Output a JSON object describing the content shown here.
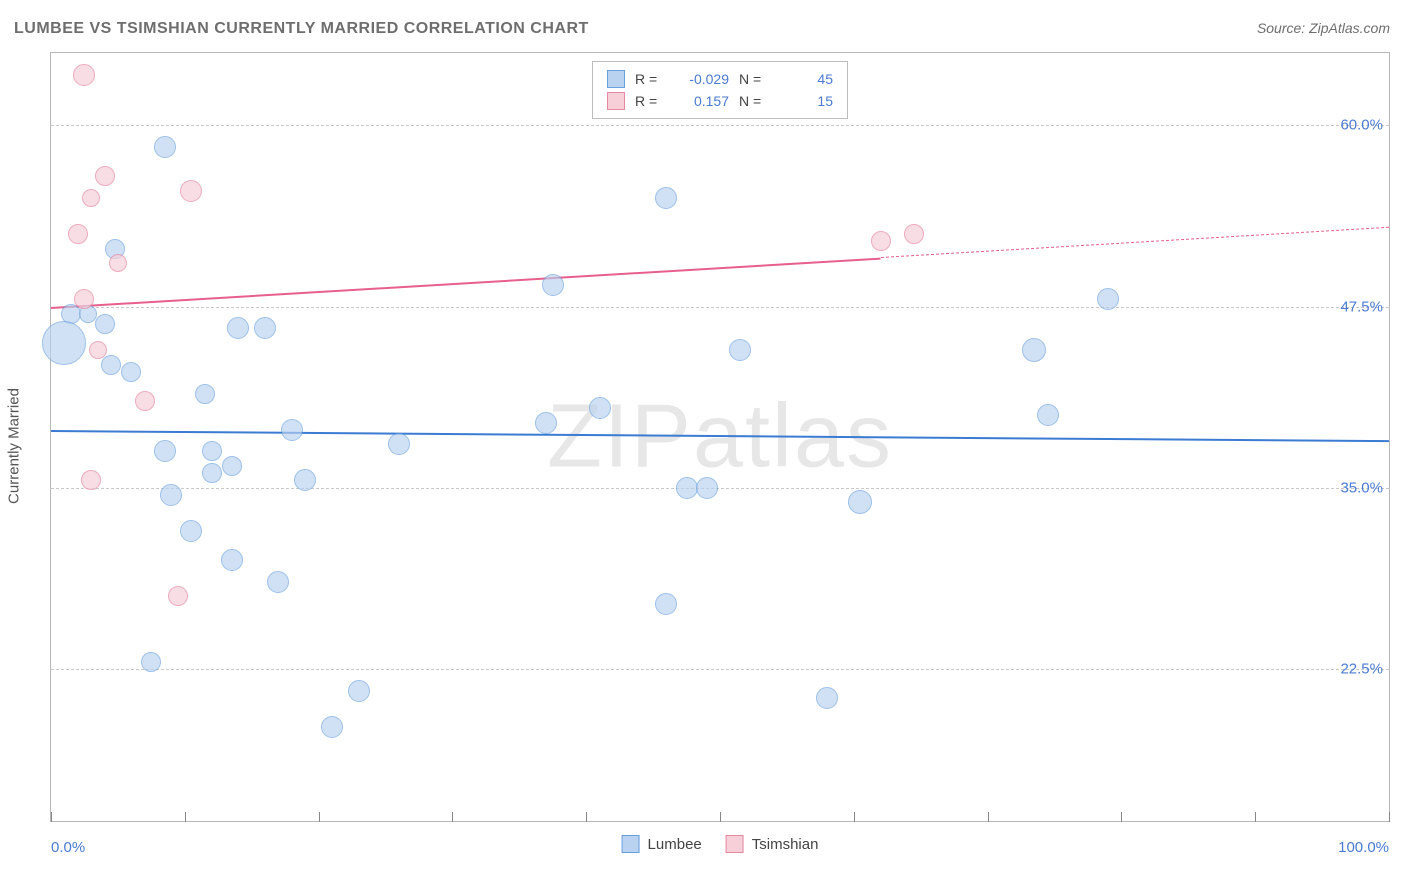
{
  "title": "LUMBEE VS TSIMSHIAN CURRENTLY MARRIED CORRELATION CHART",
  "source_label": "Source: ",
  "source_value": "ZipAtlas.com",
  "watermark": "ZIPatlas",
  "y_axis_label": "Currently Married",
  "chart": {
    "type": "scatter",
    "background_color": "#ffffff",
    "grid_color": "#c9c9c9",
    "axis_color": "#b8b8b8",
    "tick_color": "#888888",
    "label_color": "#4b7bd1",
    "x_range": [
      0,
      100
    ],
    "y_range": [
      12,
      65
    ],
    "x_ticks": [
      0,
      10,
      20,
      30,
      40,
      50,
      60,
      70,
      80,
      90,
      100
    ],
    "x_tick_labels": {
      "0": "0.0%",
      "100": "100.0%"
    },
    "y_gridlines": [
      22.5,
      35.0,
      47.5,
      60.0
    ],
    "y_tick_labels": [
      "22.5%",
      "35.0%",
      "47.5%",
      "60.0%"
    ],
    "series": [
      {
        "name": "Lumbee",
        "fill": "#b9d2f0",
        "stroke": "#6a9fdd",
        "fill_opacity": 0.65,
        "trend": {
          "y_at_x0": 39.0,
          "y_at_x100": 38.3,
          "color": "#3b7bd1",
          "width": 2.2,
          "dashed": false,
          "x_end": 100
        },
        "R": "-0.029",
        "N": "45",
        "points": [
          {
            "x": 8.5,
            "y": 58.5,
            "r": 11
          },
          {
            "x": 46.0,
            "y": 55.0,
            "r": 11
          },
          {
            "x": 4.8,
            "y": 51.5,
            "r": 10
          },
          {
            "x": 37.5,
            "y": 49.0,
            "r": 11
          },
          {
            "x": 79.0,
            "y": 48.0,
            "r": 11
          },
          {
            "x": 1.5,
            "y": 47.0,
            "r": 10
          },
          {
            "x": 2.8,
            "y": 47.0,
            "r": 9
          },
          {
            "x": 4.0,
            "y": 46.3,
            "r": 10
          },
          {
            "x": 14.0,
            "y": 46.0,
            "r": 11
          },
          {
            "x": 16.0,
            "y": 46.0,
            "r": 11
          },
          {
            "x": 1.0,
            "y": 45.0,
            "r": 22
          },
          {
            "x": 73.5,
            "y": 44.5,
            "r": 12
          },
          {
            "x": 51.5,
            "y": 44.5,
            "r": 11
          },
          {
            "x": 4.5,
            "y": 43.5,
            "r": 10
          },
          {
            "x": 6.0,
            "y": 43.0,
            "r": 10
          },
          {
            "x": 11.5,
            "y": 41.5,
            "r": 10
          },
          {
            "x": 41.0,
            "y": 40.5,
            "r": 11
          },
          {
            "x": 74.5,
            "y": 40.0,
            "r": 11
          },
          {
            "x": 37.0,
            "y": 39.5,
            "r": 11
          },
          {
            "x": 18.0,
            "y": 39.0,
            "r": 11
          },
          {
            "x": 26.0,
            "y": 38.0,
            "r": 11
          },
          {
            "x": 8.5,
            "y": 37.5,
            "r": 11
          },
          {
            "x": 12.0,
            "y": 37.5,
            "r": 10
          },
          {
            "x": 13.5,
            "y": 36.5,
            "r": 10
          },
          {
            "x": 12.0,
            "y": 36.0,
            "r": 10
          },
          {
            "x": 19.0,
            "y": 35.5,
            "r": 11
          },
          {
            "x": 47.5,
            "y": 35.0,
            "r": 11
          },
          {
            "x": 49.0,
            "y": 35.0,
            "r": 11
          },
          {
            "x": 9.0,
            "y": 34.5,
            "r": 11
          },
          {
            "x": 60.5,
            "y": 34.0,
            "r": 12
          },
          {
            "x": 10.5,
            "y": 32.0,
            "r": 11
          },
          {
            "x": 13.5,
            "y": 30.0,
            "r": 11
          },
          {
            "x": 17.0,
            "y": 28.5,
            "r": 11
          },
          {
            "x": 46.0,
            "y": 27.0,
            "r": 11
          },
          {
            "x": 7.5,
            "y": 23.0,
            "r": 10
          },
          {
            "x": 23.0,
            "y": 21.0,
            "r": 11
          },
          {
            "x": 58.0,
            "y": 20.5,
            "r": 11
          },
          {
            "x": 21.0,
            "y": 18.5,
            "r": 11
          }
        ]
      },
      {
        "name": "Tsimshian",
        "fill": "#f6cfd9",
        "stroke": "#e589a2",
        "fill_opacity": 0.7,
        "trend": {
          "y_at_x0": 47.5,
          "y_at_x100": 53.0,
          "color": "#e75f8c",
          "width": 2.2,
          "dashed_tail_from": 62,
          "x_end": 100
        },
        "R": "0.157",
        "N": "15",
        "points": [
          {
            "x": 2.5,
            "y": 63.5,
            "r": 11
          },
          {
            "x": 4.0,
            "y": 56.5,
            "r": 10
          },
          {
            "x": 10.5,
            "y": 55.5,
            "r": 11
          },
          {
            "x": 3.0,
            "y": 55.0,
            "r": 9
          },
          {
            "x": 2.0,
            "y": 52.5,
            "r": 10
          },
          {
            "x": 62.0,
            "y": 52.0,
            "r": 10
          },
          {
            "x": 64.5,
            "y": 52.5,
            "r": 10
          },
          {
            "x": 5.0,
            "y": 50.5,
            "r": 9
          },
          {
            "x": 2.5,
            "y": 48.0,
            "r": 10
          },
          {
            "x": 3.5,
            "y": 44.5,
            "r": 9
          },
          {
            "x": 7.0,
            "y": 41.0,
            "r": 10
          },
          {
            "x": 9.5,
            "y": 27.5,
            "r": 10
          },
          {
            "x": 3.0,
            "y": 35.5,
            "r": 10
          }
        ]
      }
    ]
  },
  "legend_top": {
    "rows": [
      {
        "swatch_fill": "#b9d2f0",
        "swatch_stroke": "#6a9fdd",
        "r_label": "R =",
        "r_value": "-0.029",
        "n_label": "N =",
        "n_value": "45"
      },
      {
        "swatch_fill": "#f6cfd9",
        "swatch_stroke": "#e589a2",
        "r_label": "R =",
        "r_value": "0.157",
        "n_label": "N =",
        "n_value": "15"
      }
    ]
  },
  "legend_bottom": {
    "items": [
      {
        "swatch_fill": "#b9d2f0",
        "swatch_stroke": "#6a9fdd",
        "label": "Lumbee"
      },
      {
        "swatch_fill": "#f6cfd9",
        "swatch_stroke": "#e589a2",
        "label": "Tsimshian"
      }
    ]
  }
}
